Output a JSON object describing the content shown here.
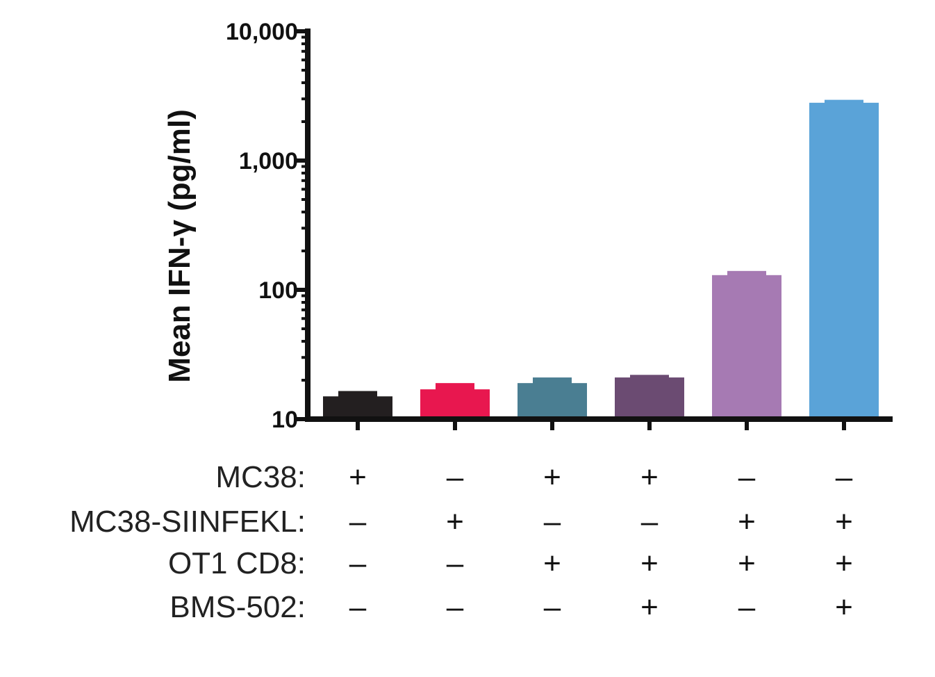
{
  "chart_data": {
    "type": "bar",
    "ylabel": "Mean IFN-γ (pg/ml)",
    "yscale": "log",
    "ylim": [
      10,
      10000
    ],
    "yticks": [
      {
        "value": 10,
        "label": "10"
      },
      {
        "value": 100,
        "label": "100"
      },
      {
        "value": 1000,
        "label": "1,000"
      },
      {
        "value": 10000,
        "label": "10,000"
      }
    ],
    "bars": [
      {
        "value": 15,
        "error": 1.5,
        "color": "#231f20"
      },
      {
        "value": 17,
        "error": 2,
        "color": "#e8174f"
      },
      {
        "value": 19,
        "error": 2,
        "color": "#4a7e92"
      },
      {
        "value": 21,
        "error": 1,
        "color": "#6b4b72"
      },
      {
        "value": 130,
        "error": 10,
        "color": "#a67ab3"
      },
      {
        "value": 2800,
        "error": 150,
        "color": "#5aa3d8"
      }
    ],
    "conditions": [
      {
        "label": "MC38:",
        "signs": [
          "+",
          "–",
          "+",
          "+",
          "–",
          "–"
        ]
      },
      {
        "label": "MC38-SIINFEKL:",
        "signs": [
          "–",
          "+",
          "–",
          "–",
          "+",
          "+"
        ]
      },
      {
        "label": "OT1 CD8:",
        "signs": [
          "–",
          "–",
          "+",
          "+",
          "+",
          "+"
        ]
      },
      {
        "label": "BMS-502:",
        "signs": [
          "–",
          "–",
          "–",
          "+",
          "–",
          "+"
        ]
      }
    ],
    "grid": false,
    "legend": "none"
  }
}
